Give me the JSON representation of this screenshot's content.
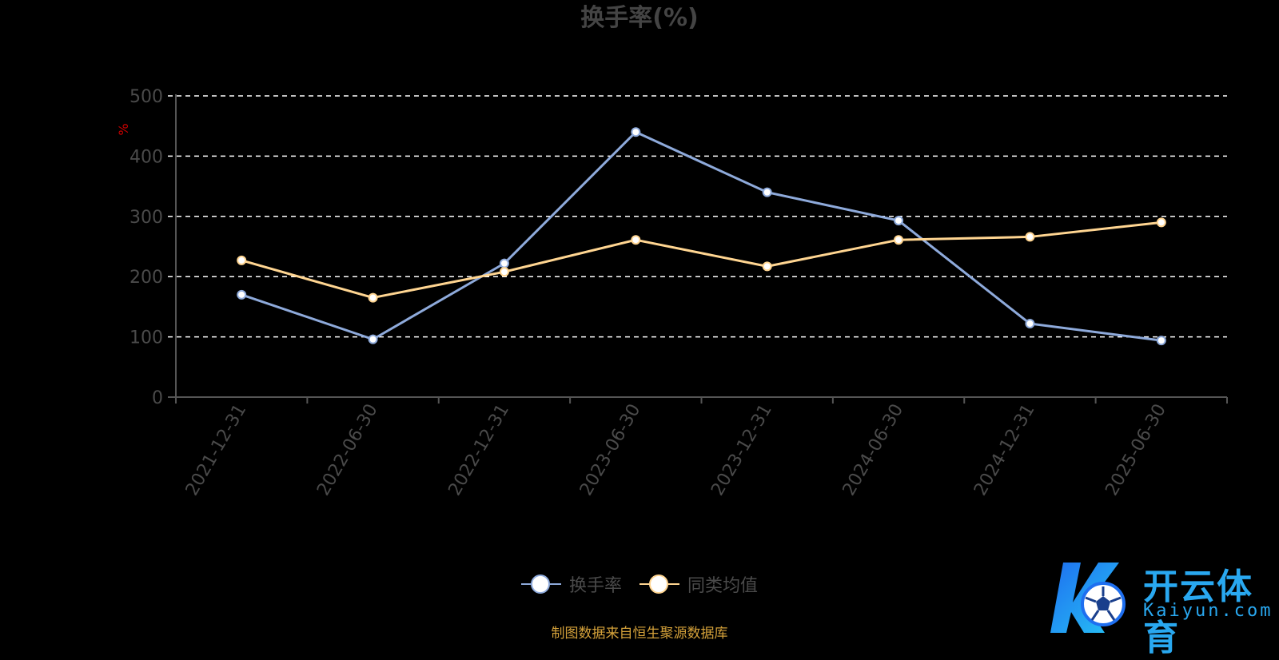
{
  "title": "换手率(%)",
  "source_note": "制图数据来自恒生聚源数据库",
  "logo": {
    "text_cn": "开云体育",
    "text_en": "Kaiyun.com"
  },
  "colors": {
    "series1": "#8eaadb",
    "series2": "#ffd591",
    "grid": "#ffffff",
    "axis": "#555555",
    "unit": "#cc0000"
  },
  "chart_data": {
    "type": "line",
    "title": "换手率(%)",
    "ylabel": "%",
    "ylim": [
      0,
      500
    ],
    "yticks": [
      0,
      100,
      200,
      300,
      400,
      500
    ],
    "categories": [
      "2021-12-31",
      "2022-06-30",
      "2022-12-31",
      "2023-06-30",
      "2023-12-31",
      "2024-06-30",
      "2024-12-31",
      "2025-06-30"
    ],
    "grid": true,
    "legend_position": "bottom-center",
    "series": [
      {
        "name": "换手率",
        "values": [
          170,
          96,
          222,
          440,
          340,
          293,
          122,
          94
        ]
      },
      {
        "name": "同类均值",
        "values": [
          227,
          165,
          208,
          261,
          217,
          261,
          266,
          290
        ]
      }
    ]
  }
}
